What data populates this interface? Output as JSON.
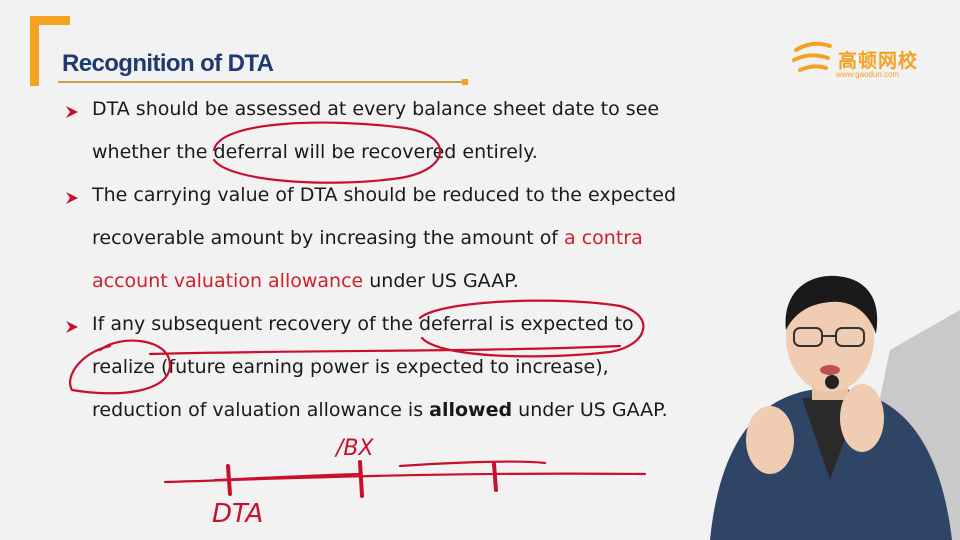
{
  "slide": {
    "title": "Recognition of DTA",
    "logo": {
      "name": "高顿网校",
      "url": "www.gaodun.com"
    }
  },
  "bullets": [
    {
      "lines": [
        [
          {
            "text": "DTA should be assessed at every balance sheet date to see"
          }
        ],
        [
          {
            "text": "whether the deferral will be recovered entirely."
          }
        ]
      ]
    },
    {
      "lines": [
        [
          {
            "text": "The carrying value of DTA should be reduced to the expected"
          }
        ],
        [
          {
            "text": "recoverable amount by increasing the amount of "
          },
          {
            "text": "a contra",
            "style": "red"
          }
        ],
        [
          {
            "text": "account valuation allowance",
            "style": "red"
          },
          {
            "text": " under US GAAP."
          }
        ]
      ]
    },
    {
      "lines": [
        [
          {
            "text": "If any subsequent recovery of the deferral is expected to"
          }
        ],
        [
          {
            "text": "realize (future earning power is expected to increase),"
          }
        ],
        [
          {
            "text": "reduction of valuation allowance is "
          },
          {
            "text": "allowed",
            "style": "bold"
          },
          {
            "text": " under US GAAP."
          }
        ]
      ]
    }
  ],
  "handwriting": {
    "label_dta": "DTA",
    "label_bx": "/BX"
  },
  "colors": {
    "accent": "#f3a321",
    "title": "#1f3a6e",
    "ink": "#c8102e",
    "highlight": "#d0202a"
  }
}
